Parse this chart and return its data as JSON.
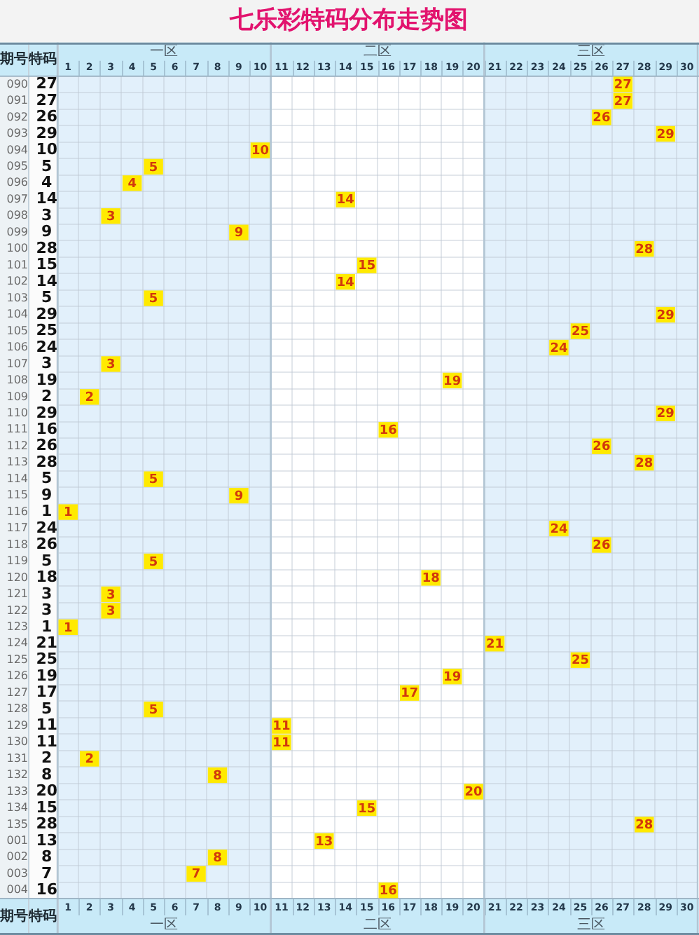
{
  "chart_data": {
    "type": "heatmap",
    "title": "七乐彩特码分布走势图",
    "ylabel": "期号",
    "y2label": "特码",
    "categories": [
      "1",
      "2",
      "3",
      "4",
      "5",
      "6",
      "7",
      "8",
      "9",
      "10",
      "11",
      "12",
      "13",
      "14",
      "15",
      "16",
      "17",
      "18",
      "19",
      "20",
      "21",
      "22",
      "23",
      "24",
      "25",
      "26",
      "27",
      "28",
      "29",
      "30"
    ],
    "y_categories": [
      "090",
      "091",
      "092",
      "093",
      "094",
      "095",
      "096",
      "097",
      "098",
      "099",
      "100",
      "101",
      "102",
      "103",
      "104",
      "105",
      "106",
      "107",
      "108",
      "109",
      "110",
      "111",
      "112",
      "113",
      "114",
      "115",
      "116",
      "117",
      "118",
      "119",
      "120",
      "121",
      "122",
      "123",
      "124",
      "125",
      "126",
      "127",
      "128",
      "129",
      "130",
      "131",
      "132",
      "133",
      "134",
      "135",
      "001",
      "002",
      "003",
      "004"
    ],
    "y2_categories": [
      "27",
      "27",
      "26",
      "29",
      "10",
      "5",
      "4",
      "14",
      "3",
      "9",
      "28",
      "15",
      "14",
      "5",
      "29",
      "25",
      "24",
      "3",
      "19",
      "2",
      "29",
      "16",
      "26",
      "28",
      "5",
      "9",
      "1",
      "24",
      "26",
      "5",
      "18",
      "3",
      "3",
      "1",
      "21",
      "25",
      "19",
      "17",
      "5",
      "11",
      "11",
      "2",
      "8",
      "20",
      "15",
      "28",
      "13",
      "8",
      "7",
      "16"
    ],
    "cells": [
      [
        null,
        null,
        null,
        null,
        null,
        null,
        null,
        null,
        null,
        null,
        null,
        null,
        null,
        null,
        null,
        null,
        null,
        null,
        null,
        null,
        null,
        null,
        null,
        null,
        null,
        null,
        27,
        null,
        null,
        null
      ],
      [
        null,
        null,
        null,
        null,
        null,
        null,
        null,
        null,
        null,
        null,
        null,
        null,
        null,
        null,
        null,
        null,
        null,
        null,
        null,
        null,
        null,
        null,
        null,
        null,
        null,
        null,
        27,
        null,
        null,
        null
      ],
      [
        null,
        null,
        null,
        null,
        null,
        null,
        null,
        null,
        null,
        null,
        null,
        null,
        null,
        null,
        null,
        null,
        null,
        null,
        null,
        null,
        null,
        null,
        null,
        null,
        null,
        26,
        null,
        null,
        null,
        null
      ],
      [
        null,
        null,
        null,
        null,
        null,
        null,
        null,
        null,
        null,
        null,
        null,
        null,
        null,
        null,
        null,
        null,
        null,
        null,
        null,
        null,
        null,
        null,
        null,
        null,
        null,
        null,
        null,
        null,
        29,
        null
      ],
      [
        null,
        null,
        null,
        null,
        null,
        null,
        null,
        null,
        null,
        10,
        null,
        null,
        null,
        null,
        null,
        null,
        null,
        null,
        null,
        null,
        null,
        null,
        null,
        null,
        null,
        null,
        null,
        null,
        null,
        null
      ],
      [
        null,
        null,
        null,
        null,
        5,
        null,
        null,
        null,
        null,
        null,
        null,
        null,
        null,
        null,
        null,
        null,
        null,
        null,
        null,
        null,
        null,
        null,
        null,
        null,
        null,
        null,
        null,
        null,
        null,
        null
      ],
      [
        null,
        null,
        null,
        4,
        null,
        null,
        null,
        null,
        null,
        null,
        null,
        null,
        null,
        null,
        null,
        null,
        null,
        null,
        null,
        null,
        null,
        null,
        null,
        null,
        null,
        null,
        null,
        null,
        null,
        null
      ],
      [
        null,
        null,
        null,
        null,
        null,
        null,
        null,
        null,
        null,
        null,
        null,
        null,
        null,
        14,
        null,
        null,
        null,
        null,
        null,
        null,
        null,
        null,
        null,
        null,
        null,
        null,
        null,
        null,
        null,
        null
      ],
      [
        null,
        null,
        3,
        null,
        null,
        null,
        null,
        null,
        null,
        null,
        null,
        null,
        null,
        null,
        null,
        null,
        null,
        null,
        null,
        null,
        null,
        null,
        null,
        null,
        null,
        null,
        null,
        null,
        null,
        null
      ],
      [
        null,
        null,
        null,
        null,
        null,
        null,
        null,
        null,
        9,
        null,
        null,
        null,
        null,
        null,
        null,
        null,
        null,
        null,
        null,
        null,
        null,
        null,
        null,
        null,
        null,
        null,
        null,
        null,
        null,
        null
      ],
      [
        null,
        null,
        null,
        null,
        null,
        null,
        null,
        null,
        null,
        null,
        null,
        null,
        null,
        null,
        null,
        null,
        null,
        null,
        null,
        null,
        null,
        null,
        null,
        null,
        null,
        null,
        null,
        28,
        null,
        null
      ],
      [
        null,
        null,
        null,
        null,
        null,
        null,
        null,
        null,
        null,
        null,
        null,
        null,
        null,
        null,
        15,
        null,
        null,
        null,
        null,
        null,
        null,
        null,
        null,
        null,
        null,
        null,
        null,
        null,
        null,
        null
      ],
      [
        null,
        null,
        null,
        null,
        null,
        null,
        null,
        null,
        null,
        null,
        null,
        null,
        null,
        14,
        null,
        null,
        null,
        null,
        null,
        null,
        null,
        null,
        null,
        null,
        null,
        null,
        null,
        null,
        null,
        null
      ],
      [
        null,
        null,
        null,
        null,
        5,
        null,
        null,
        null,
        null,
        null,
        null,
        null,
        null,
        null,
        null,
        null,
        null,
        null,
        null,
        null,
        null,
        null,
        null,
        null,
        null,
        null,
        null,
        null,
        null,
        null
      ],
      [
        null,
        null,
        null,
        null,
        null,
        null,
        null,
        null,
        null,
        null,
        null,
        null,
        null,
        null,
        null,
        null,
        null,
        null,
        null,
        null,
        null,
        null,
        null,
        null,
        null,
        null,
        null,
        null,
        29,
        null
      ],
      [
        null,
        null,
        null,
        null,
        null,
        null,
        null,
        null,
        null,
        null,
        null,
        null,
        null,
        null,
        null,
        null,
        null,
        null,
        null,
        null,
        null,
        null,
        null,
        null,
        25,
        null,
        null,
        null,
        null,
        null
      ],
      [
        null,
        null,
        null,
        null,
        null,
        null,
        null,
        null,
        null,
        null,
        null,
        null,
        null,
        null,
        null,
        null,
        null,
        null,
        null,
        null,
        null,
        null,
        null,
        24,
        null,
        null,
        null,
        null,
        null,
        null
      ],
      [
        null,
        null,
        3,
        null,
        null,
        null,
        null,
        null,
        null,
        null,
        null,
        null,
        null,
        null,
        null,
        null,
        null,
        null,
        null,
        null,
        null,
        null,
        null,
        null,
        null,
        null,
        null,
        null,
        null,
        null
      ],
      [
        null,
        null,
        null,
        null,
        null,
        null,
        null,
        null,
        null,
        null,
        null,
        null,
        null,
        null,
        null,
        null,
        null,
        null,
        19,
        null,
        null,
        null,
        null,
        null,
        null,
        null,
        null,
        null,
        null,
        null
      ],
      [
        null,
        2,
        null,
        null,
        null,
        null,
        null,
        null,
        null,
        null,
        null,
        null,
        null,
        null,
        null,
        null,
        null,
        null,
        null,
        null,
        null,
        null,
        null,
        null,
        null,
        null,
        null,
        null,
        null,
        null
      ],
      [
        null,
        null,
        null,
        null,
        null,
        null,
        null,
        null,
        null,
        null,
        null,
        null,
        null,
        null,
        null,
        null,
        null,
        null,
        null,
        null,
        null,
        null,
        null,
        null,
        null,
        null,
        null,
        null,
        29,
        null
      ],
      [
        null,
        null,
        null,
        null,
        null,
        null,
        null,
        null,
        null,
        null,
        null,
        null,
        null,
        null,
        null,
        16,
        null,
        null,
        null,
        null,
        null,
        null,
        null,
        null,
        null,
        null,
        null,
        null,
        null,
        null
      ],
      [
        null,
        null,
        null,
        null,
        null,
        null,
        null,
        null,
        null,
        null,
        null,
        null,
        null,
        null,
        null,
        null,
        null,
        null,
        null,
        null,
        null,
        null,
        null,
        null,
        null,
        26,
        null,
        null,
        null,
        null
      ],
      [
        null,
        null,
        null,
        null,
        null,
        null,
        null,
        null,
        null,
        null,
        null,
        null,
        null,
        null,
        null,
        null,
        null,
        null,
        null,
        null,
        null,
        null,
        null,
        null,
        null,
        null,
        null,
        28,
        null,
        null
      ],
      [
        null,
        null,
        null,
        null,
        5,
        null,
        null,
        null,
        null,
        null,
        null,
        null,
        null,
        null,
        null,
        null,
        null,
        null,
        null,
        null,
        null,
        null,
        null,
        null,
        null,
        null,
        null,
        null,
        null,
        null
      ],
      [
        null,
        null,
        null,
        null,
        null,
        null,
        null,
        null,
        9,
        null,
        null,
        null,
        null,
        null,
        null,
        null,
        null,
        null,
        null,
        null,
        null,
        null,
        null,
        null,
        null,
        null,
        null,
        null,
        null,
        null
      ],
      [
        1,
        null,
        null,
        null,
        null,
        null,
        null,
        null,
        null,
        null,
        null,
        null,
        null,
        null,
        null,
        null,
        null,
        null,
        null,
        null,
        null,
        null,
        null,
        null,
        null,
        null,
        null,
        null,
        null,
        null
      ],
      [
        null,
        null,
        null,
        null,
        null,
        null,
        null,
        null,
        null,
        null,
        null,
        null,
        null,
        null,
        null,
        null,
        null,
        null,
        null,
        null,
        null,
        null,
        null,
        24,
        null,
        null,
        null,
        null,
        null,
        null
      ],
      [
        null,
        null,
        null,
        null,
        null,
        null,
        null,
        null,
        null,
        null,
        null,
        null,
        null,
        null,
        null,
        null,
        null,
        null,
        null,
        null,
        null,
        null,
        null,
        null,
        null,
        26,
        null,
        null,
        null,
        null
      ],
      [
        null,
        null,
        null,
        null,
        5,
        null,
        null,
        null,
        null,
        null,
        null,
        null,
        null,
        null,
        null,
        null,
        null,
        null,
        null,
        null,
        null,
        null,
        null,
        null,
        null,
        null,
        null,
        null,
        null,
        null
      ],
      [
        null,
        null,
        null,
        null,
        null,
        null,
        null,
        null,
        null,
        null,
        null,
        null,
        null,
        null,
        null,
        null,
        null,
        18,
        null,
        null,
        null,
        null,
        null,
        null,
        null,
        null,
        null,
        null,
        null,
        null
      ],
      [
        null,
        null,
        3,
        null,
        null,
        null,
        null,
        null,
        null,
        null,
        null,
        null,
        null,
        null,
        null,
        null,
        null,
        null,
        null,
        null,
        null,
        null,
        null,
        null,
        null,
        null,
        null,
        null,
        null,
        null
      ],
      [
        null,
        null,
        3,
        null,
        null,
        null,
        null,
        null,
        null,
        null,
        null,
        null,
        null,
        null,
        null,
        null,
        null,
        null,
        null,
        null,
        null,
        null,
        null,
        null,
        null,
        null,
        null,
        null,
        null,
        null
      ],
      [
        1,
        null,
        null,
        null,
        null,
        null,
        null,
        null,
        null,
        null,
        null,
        null,
        null,
        null,
        null,
        null,
        null,
        null,
        null,
        null,
        null,
        null,
        null,
        null,
        null,
        null,
        null,
        null,
        null,
        null
      ],
      [
        null,
        null,
        null,
        null,
        null,
        null,
        null,
        null,
        null,
        null,
        null,
        null,
        null,
        null,
        null,
        null,
        null,
        null,
        null,
        null,
        21,
        null,
        null,
        null,
        null,
        null,
        null,
        null,
        null,
        null
      ],
      [
        null,
        null,
        null,
        null,
        null,
        null,
        null,
        null,
        null,
        null,
        null,
        null,
        null,
        null,
        null,
        null,
        null,
        null,
        null,
        null,
        null,
        null,
        null,
        null,
        25,
        null,
        null,
        null,
        null,
        null
      ],
      [
        null,
        null,
        null,
        null,
        null,
        null,
        null,
        null,
        null,
        null,
        null,
        null,
        null,
        null,
        null,
        null,
        null,
        null,
        19,
        null,
        null,
        null,
        null,
        null,
        null,
        null,
        null,
        null,
        null,
        null
      ],
      [
        null,
        null,
        null,
        null,
        null,
        null,
        null,
        null,
        null,
        null,
        null,
        null,
        null,
        null,
        null,
        null,
        17,
        null,
        null,
        null,
        null,
        null,
        null,
        null,
        null,
        null,
        null,
        null,
        null,
        null
      ],
      [
        null,
        null,
        null,
        null,
        5,
        null,
        null,
        null,
        null,
        null,
        null,
        null,
        null,
        null,
        null,
        null,
        null,
        null,
        null,
        null,
        null,
        null,
        null,
        null,
        null,
        null,
        null,
        null,
        null,
        null
      ],
      [
        null,
        null,
        null,
        null,
        null,
        null,
        null,
        null,
        null,
        null,
        11,
        null,
        null,
        null,
        null,
        null,
        null,
        null,
        null,
        null,
        null,
        null,
        null,
        null,
        null,
        null,
        null,
        null,
        null,
        null
      ],
      [
        null,
        null,
        null,
        null,
        null,
        null,
        null,
        null,
        null,
        null,
        11,
        null,
        null,
        null,
        null,
        null,
        null,
        null,
        null,
        null,
        null,
        null,
        null,
        null,
        null,
        null,
        null,
        null,
        null,
        null
      ],
      [
        null,
        2,
        null,
        null,
        null,
        null,
        null,
        null,
        null,
        null,
        null,
        null,
        null,
        null,
        null,
        null,
        null,
        null,
        null,
        null,
        null,
        null,
        null,
        null,
        null,
        null,
        null,
        null,
        null,
        null
      ],
      [
        null,
        null,
        null,
        null,
        null,
        null,
        null,
        8,
        null,
        null,
        null,
        null,
        null,
        null,
        null,
        null,
        null,
        null,
        null,
        null,
        null,
        null,
        null,
        null,
        null,
        null,
        null,
        null,
        null,
        null
      ],
      [
        null,
        null,
        null,
        null,
        null,
        null,
        null,
        null,
        null,
        null,
        null,
        null,
        null,
        null,
        null,
        null,
        null,
        null,
        null,
        20,
        null,
        null,
        null,
        null,
        null,
        null,
        null,
        null,
        null,
        null
      ],
      [
        null,
        null,
        null,
        null,
        null,
        null,
        null,
        null,
        null,
        null,
        null,
        null,
        null,
        null,
        15,
        null,
        null,
        null,
        null,
        null,
        null,
        null,
        null,
        null,
        null,
        null,
        null,
        null,
        null,
        null
      ],
      [
        null,
        null,
        null,
        null,
        null,
        null,
        null,
        null,
        null,
        null,
        null,
        null,
        null,
        null,
        null,
        null,
        null,
        null,
        null,
        null,
        null,
        null,
        null,
        null,
        null,
        null,
        null,
        28,
        null,
        null
      ],
      [
        null,
        null,
        null,
        null,
        null,
        null,
        null,
        null,
        null,
        null,
        null,
        null,
        13,
        null,
        null,
        null,
        null,
        null,
        null,
        null,
        null,
        null,
        null,
        null,
        null,
        null,
        null,
        null,
        null,
        null
      ],
      [
        null,
        null,
        null,
        null,
        null,
        null,
        null,
        8,
        null,
        null,
        null,
        null,
        null,
        null,
        null,
        null,
        null,
        null,
        null,
        null,
        null,
        null,
        null,
        null,
        null,
        null,
        null,
        null,
        null,
        null
      ],
      [
        null,
        null,
        null,
        null,
        null,
        null,
        7,
        null,
        null,
        null,
        null,
        null,
        null,
        null,
        null,
        null,
        null,
        null,
        null,
        null,
        null,
        null,
        null,
        null,
        null,
        null,
        null,
        null,
        null,
        null
      ],
      [
        null,
        null,
        null,
        null,
        null,
        null,
        null,
        null,
        null,
        null,
        null,
        null,
        null,
        null,
        null,
        16,
        null,
        null,
        null,
        null,
        null,
        null,
        null,
        null,
        null,
        null,
        null,
        null,
        null,
        null
      ]
    ],
    "color": "#ffea00",
    "data_labels": true,
    "bands": [
      {
        "axis": "x",
        "from": "1",
        "to": "10",
        "label": "一区",
        "color": "#e2f0fb"
      },
      {
        "axis": "x",
        "from": "11",
        "to": "20",
        "label": "二区",
        "color": "#ffffff"
      },
      {
        "axis": "x",
        "from": "21",
        "to": "30",
        "label": "三区",
        "color": "#e2f0fb"
      }
    ],
    "grid": true
  }
}
